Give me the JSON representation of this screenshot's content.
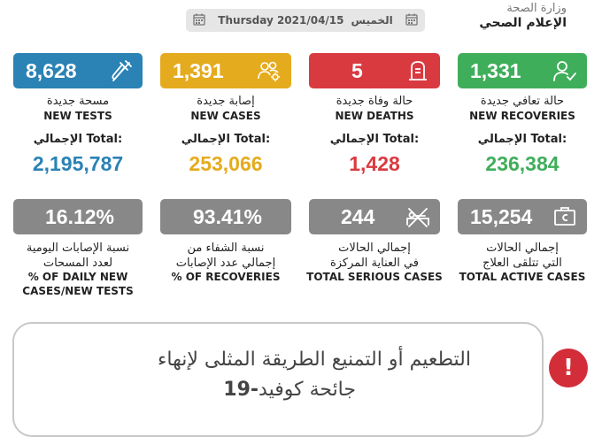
{
  "header": {
    "ministry_line1": "وزارة الصحة",
    "ministry_line2": "الإعلام الصحي",
    "date_ar": "الخميس",
    "date_en": "Thursday 2021/04/15"
  },
  "colors": {
    "tests": "#2a82b5",
    "cases": "#e5ab1e",
    "deaths": "#d93a40",
    "recoveries": "#3fae5a",
    "grey": "#888888"
  },
  "stats": {
    "tests": {
      "value": "8,628",
      "ar": "مسحة جديدة",
      "en": "NEW TESTS",
      "total_label": "الإجمالي Total:",
      "total": "2,195,787",
      "icon": "test-tube-icon"
    },
    "cases": {
      "value": "1,391",
      "ar": "إصابة جديدة",
      "en": "NEW CASES",
      "total_label": "الإجمالي Total:",
      "total": "253,066",
      "icon": "people-virus-icon"
    },
    "deaths": {
      "value": "5",
      "ar": "حالة وفاة جديدة",
      "en": "NEW DEATHS",
      "total_label": "الإجمالي Total:",
      "total": "1,428",
      "icon": "tombstone-icon"
    },
    "recoveries": {
      "value": "1,331",
      "ar": "حالة تعافي جديدة",
      "en": "NEW RECOVERIES",
      "total_label": "الإجمالي Total:",
      "total": "236,384",
      "icon": "person-check-icon"
    }
  },
  "secondary": {
    "daily_rate": {
      "value": "16.12%",
      "ar1": "نسبة الإصابات اليومية",
      "ar2": "لعدد المسحات",
      "en1": "% OF DAILY NEW",
      "en2": "CASES/NEW TESTS"
    },
    "recovery_rate": {
      "value": "93.41%",
      "ar1": "نسبة الشفاء من",
      "ar2": "إجمالي عدد الإصابات",
      "en1": "% OF RECOVERIES"
    },
    "serious": {
      "value": "244",
      "ar1": "إجمالي الحالات",
      "ar2": "في العناية المركزة",
      "en1": "TOTAL SERIOUS CASES",
      "icon": "hospital-bed-icon"
    },
    "active": {
      "value": "15,254",
      "ar1": "إجمالي الحالات",
      "ar2": "التي تتلقى العلاج",
      "en1": "TOTAL ACTIVE CASES",
      "icon": "medicine-box-icon"
    }
  },
  "banner": {
    "line1": "التطعيم أو التمنيع الطريقة المثلى لإنهاء",
    "line2_ar": "جائحة كوفيد",
    "line2_num": "-19",
    "icon": "exclamation-icon",
    "icon_text": "!"
  }
}
